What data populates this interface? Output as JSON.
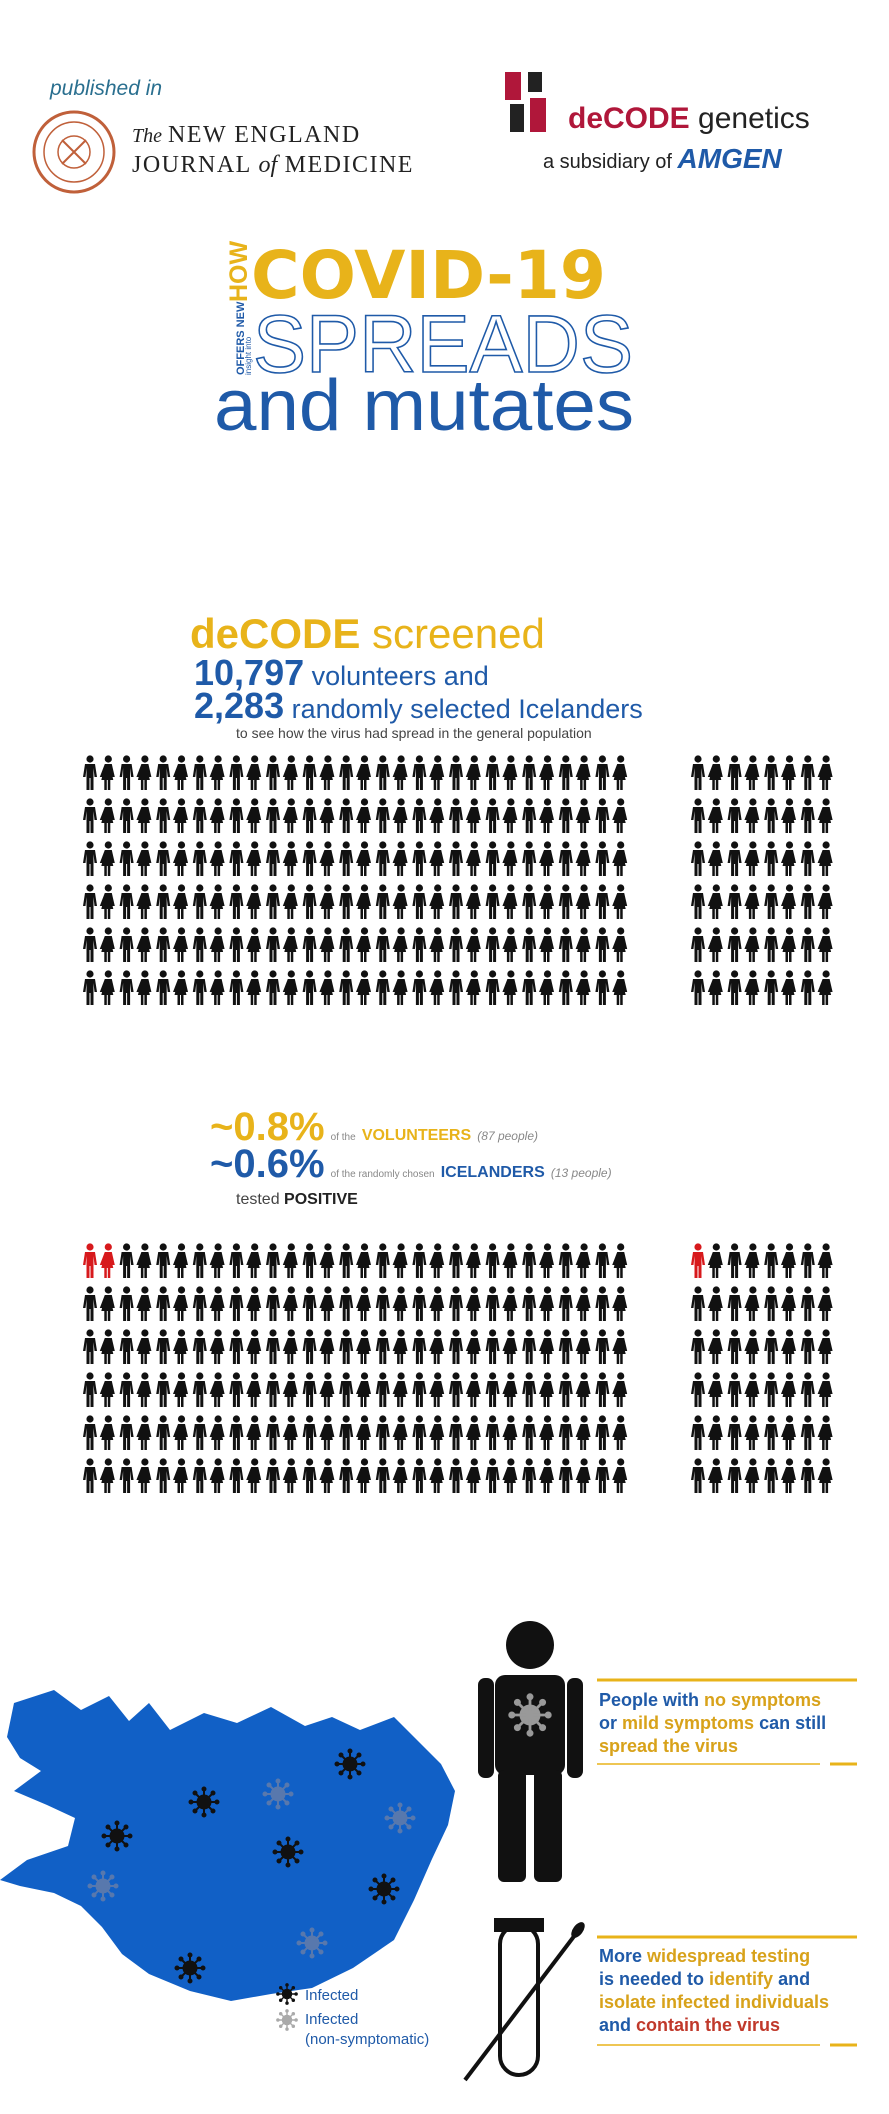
{
  "header": {
    "published_in": "published in",
    "journal_the": "The",
    "journal_line1": "NEW ENGLAND",
    "journal_line2_a": "JOURNAL",
    "journal_line2_b": "of",
    "journal_line2_c": "MEDICINE",
    "company": "deCODE",
    "company_suffix": "genetics",
    "subsidiary": "a subsidiary of",
    "parent": "AMGEN"
  },
  "title": {
    "how": "HOW",
    "line1": "COVID-19",
    "offers": "OFFERS NEW",
    "insight": "insight into",
    "line2": "SPREADS",
    "line3": "and mutates"
  },
  "screening": {
    "lead": "deCODE",
    "lead_rest": "screened",
    "volunteers": "10,797",
    "volunteers_text": "volunteers and",
    "random": "2,283",
    "random_text": "randomly selected Icelanders",
    "note": "to see how the virus had spread in the general population"
  },
  "results": {
    "volunteer_pct": "~0.8%",
    "volunteer_of": "of the",
    "volunteer_group": "VOLUNTEERS",
    "volunteer_count": "(87 people)",
    "random_pct": "~0.6%",
    "random_of": "of the randomly chosen",
    "random_group": "ICELANDERS",
    "random_count": "(13 people)",
    "tested": "tested",
    "positive": "POSITIVE"
  },
  "map_legend": {
    "infected": "Infected",
    "non_symptomatic_1": "Infected",
    "non_symptomatic_2": "(non-symptomatic)"
  },
  "callouts": [
    {
      "line1_a": "People with",
      "line1_b": "no symptoms",
      "line2_a": "or",
      "line2_b": "mild symptoms",
      "line2_c": "can still",
      "line3": "spread the virus"
    },
    {
      "line1_a": "More",
      "line1_b": "widespread testing",
      "line2_a": "is needed to",
      "line2_b": "identify",
      "line2_c": "and",
      "line3": "isolate infected individuals",
      "line4_a": "and",
      "line4_b": "contain the virus"
    }
  ]
}
